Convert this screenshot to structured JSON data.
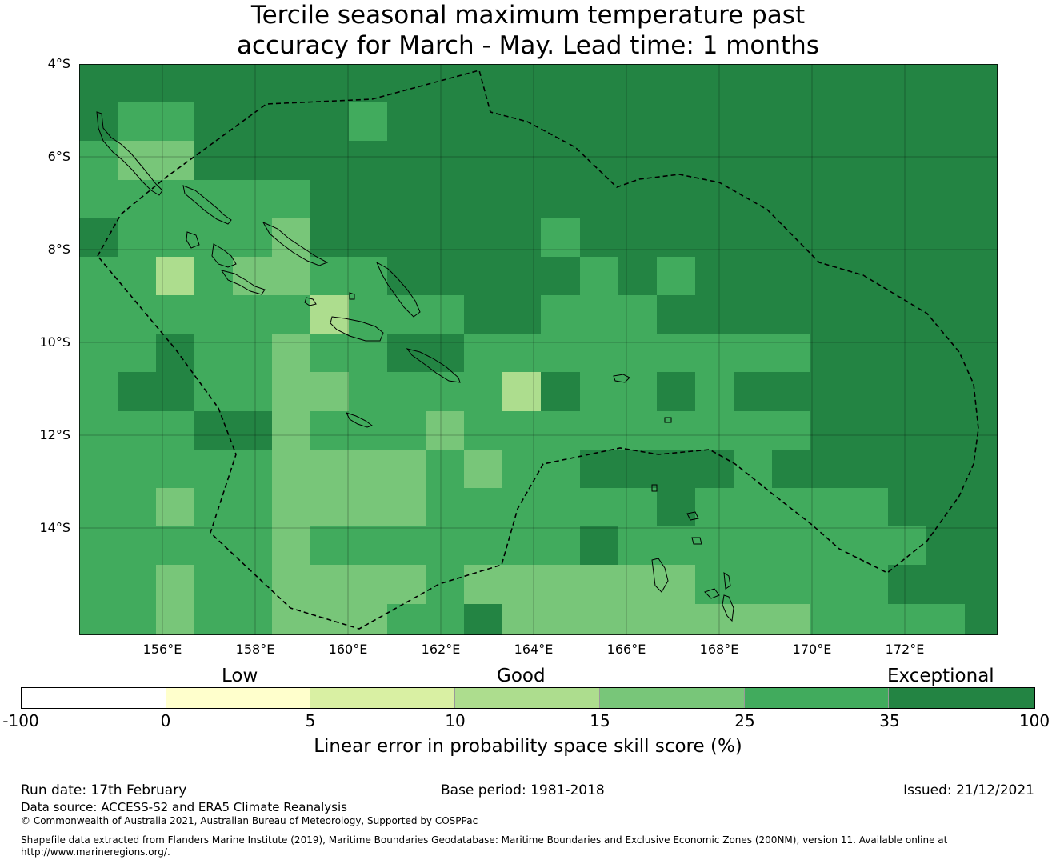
{
  "title": {
    "line1": "Tercile seasonal maximum temperature past",
    "line2": "accuracy for March - May. Lead time: 1 months"
  },
  "map": {
    "lat_labels": [
      "4°S",
      "6°S",
      "8°S",
      "10°S",
      "12°S",
      "14°S"
    ],
    "lon_labels": [
      "156°E",
      "158°E",
      "160°E",
      "162°E",
      "164°E",
      "166°E",
      "168°E",
      "170°E",
      "172°E"
    ],
    "extent": {
      "lon_min": 154.2,
      "lon_max": 174.0,
      "lat_top": -4.0,
      "lat_bottom": -16.3
    },
    "grid_step_deg": 0.83,
    "grid_categories": [
      "6666666666666666666666666",
      "6556666566666666666666666",
      "5446666666666666666666666",
      "5555556666666666666666666",
      "6555546666665666666666666",
      "5535445566666565666666666",
      "5555553555665556666666666",
      "5565545566555555555666666",
      "5665544555536556566666666",
      "5556645554555555555666666",
      "5555544445455666656666666",
      "5545544445555556555556666",
      "5555545555555655555555666",
      "5545544445444444555556666",
      "5545544455644444444555566",
      "5555545444444445554455555",
      "4555554445444444555455556",
      "5455545455455444554455555",
      "4544444444444544444444555",
      "5544455444444555555544555",
      "4545544444444555444455455",
      "4544444444454443555455446",
      "4554444454444453444556555"
    ],
    "eez_boundary": "dashed",
    "regions": [
      "Solomon Islands",
      "Vanuatu"
    ]
  },
  "colorbar": {
    "category_labels": {
      "low": "Low",
      "good": "Good",
      "exceptional": "Exceptional"
    },
    "ticks": [
      "-100",
      "0",
      "5",
      "10",
      "15",
      "25",
      "35",
      "100"
    ],
    "colors": [
      "#ffffff",
      "#ffffcc",
      "#d9f0a3",
      "#addd8e",
      "#78c679",
      "#41ab5d",
      "#238443"
    ],
    "label": "Linear error in probability space skill score (%)"
  },
  "footer": {
    "run_date": "Run date: 17th February",
    "base_period": "Base period: 1981-2018",
    "issued": "Issued: 21/12/2021",
    "data_source": "Data source: ACCESS-S2 and ERA5 Climate Reanalysis",
    "copyright": "© Commonwealth of Australia 2021, Australian Bureau of Meteorology, Supported by COSPPac",
    "shapefile_line1": "Shapefile data extracted from Flanders Marine Institute (2019), Maritime Boundaries Geodatabase: Maritime Boundaries and Exclusive Economic Zones (200NM), version 11. Available online at",
    "shapefile_line2": "http://www.marineregions.org/."
  }
}
